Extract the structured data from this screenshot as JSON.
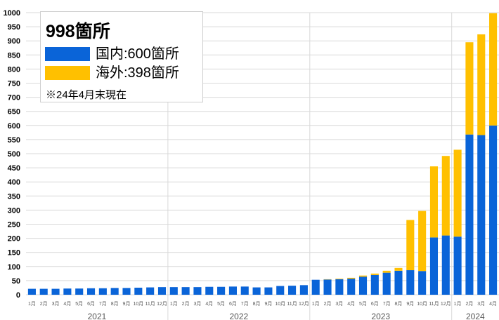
{
  "legend": {
    "title": "998箇所",
    "domestic_label": "国内:600箇所",
    "overseas_label": "海外:398箇所",
    "note": "※24年4月末現在"
  },
  "colors": {
    "domestic": "#0a64d8",
    "overseas": "#ffc000",
    "grid": "#d9d9d9",
    "axis_text": "#595959"
  },
  "chart_data": {
    "type": "bar",
    "stacked": true,
    "ylim": [
      0,
      1000
    ],
    "yticks": [
      0,
      50,
      100,
      150,
      200,
      250,
      300,
      350,
      400,
      450,
      500,
      550,
      600,
      650,
      700,
      750,
      800,
      850,
      900,
      950,
      1000
    ],
    "grid": true,
    "legend_position": "top-left",
    "categories": [
      "1月",
      "2月",
      "3月",
      "4月",
      "5月",
      "6月",
      "7月",
      "8月",
      "9月",
      "10月",
      "11月",
      "12月",
      "1月",
      "2月",
      "3月",
      "4月",
      "5月",
      "6月",
      "7月",
      "8月",
      "9月",
      "10月",
      "11月",
      "12月",
      "1月",
      "2月",
      "3月",
      "4月",
      "5月",
      "6月",
      "7月",
      "8月",
      "9月",
      "10月",
      "11月",
      "12月",
      "1月",
      "2月",
      "3月",
      "4月"
    ],
    "year_groups": [
      {
        "label": "2021",
        "start": 0,
        "count": 12
      },
      {
        "label": "2022",
        "start": 12,
        "count": 12
      },
      {
        "label": "2023",
        "start": 24,
        "count": 12
      },
      {
        "label": "2024",
        "start": 36,
        "count": 4
      }
    ],
    "series": [
      {
        "key": "domestic",
        "values": [
          21,
          21,
          21,
          22,
          22,
          23,
          23,
          24,
          24,
          25,
          26,
          27,
          27,
          27,
          27,
          28,
          28,
          29,
          29,
          26,
          26,
          31,
          32,
          34,
          53,
          54,
          55,
          57,
          64,
          70,
          78,
          85,
          87,
          84,
          203,
          210,
          206,
          568,
          566,
          600
        ]
      },
      {
        "key": "overseas",
        "values": [
          0,
          0,
          0,
          0,
          0,
          0,
          0,
          0,
          0,
          0,
          0,
          0,
          0,
          0,
          0,
          0,
          0,
          0,
          0,
          0,
          0,
          0,
          0,
          0,
          0,
          1,
          2,
          3,
          4,
          5,
          7,
          10,
          178,
          213,
          252,
          282,
          308,
          327,
          357,
          398
        ]
      }
    ]
  }
}
